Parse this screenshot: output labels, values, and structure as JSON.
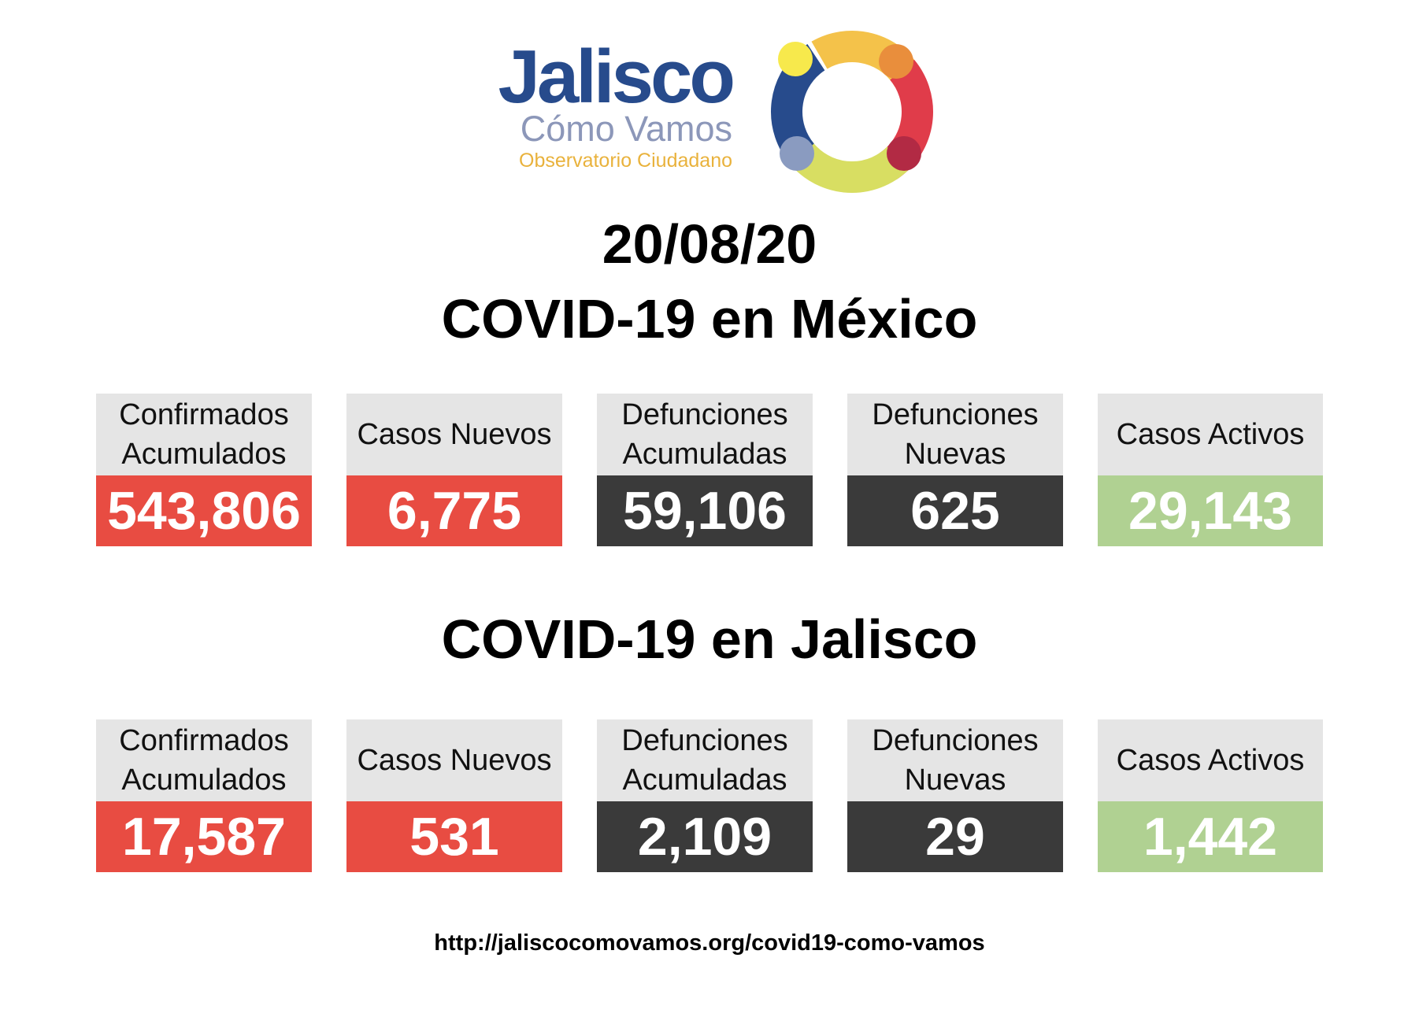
{
  "logo": {
    "main": "Jalisco",
    "sub": "Cómo Vamos",
    "tagline": "Observatorio Ciudadano",
    "colors": [
      "#f4c24a",
      "#e98e3c",
      "#e03c4a",
      "#b22a44",
      "#d8de62",
      "#8a9bc0",
      "#274b8c",
      "#f7e94c"
    ]
  },
  "date": "20/08/20",
  "mexico": {
    "title": "COVID-19 en México",
    "stats": [
      {
        "label": "Confirmados\nAcumulados",
        "value": "543,806",
        "color": "#e84c42"
      },
      {
        "label": "Casos Nuevos",
        "value": "6,775",
        "color": "#e84c42"
      },
      {
        "label": "Defunciones\nAcumuladas",
        "value": "59,106",
        "color": "#3a3a3a"
      },
      {
        "label": "Defunciones\nNuevas",
        "value": "625",
        "color": "#3a3a3a"
      },
      {
        "label": "Casos Activos",
        "value": "29,143",
        "color": "#b0d192"
      }
    ]
  },
  "jalisco": {
    "title": "COVID-19 en Jalisco",
    "stats": [
      {
        "label": "Confirmados\nAcumulados",
        "value": "17,587",
        "color": "#e84c42"
      },
      {
        "label": "Casos Nuevos",
        "value": "531",
        "color": "#e84c42"
      },
      {
        "label": "Defunciones\nAcumuladas",
        "value": "2,109",
        "color": "#3a3a3a"
      },
      {
        "label": "Defunciones\nNuevas",
        "value": "29",
        "color": "#3a3a3a"
      },
      {
        "label": "Casos Activos",
        "value": "1,442",
        "color": "#b0d192"
      }
    ]
  },
  "footer": {
    "url": "http://jaliscocomovamos.org/covid19-como-vamos"
  }
}
